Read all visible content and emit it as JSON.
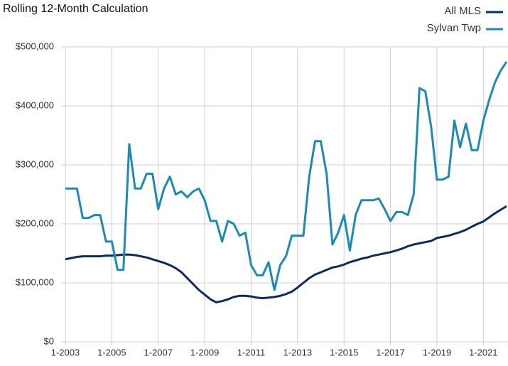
{
  "chart_data": {
    "type": "line",
    "title": "Rolling 12-Month Calculation",
    "x": [
      2003,
      2003.25,
      2003.5,
      2003.75,
      2004,
      2004.25,
      2004.5,
      2004.75,
      2005,
      2005.25,
      2005.5,
      2005.75,
      2006,
      2006.25,
      2006.5,
      2006.75,
      2007,
      2007.25,
      2007.5,
      2007.75,
      2008,
      2008.25,
      2008.5,
      2008.75,
      2009,
      2009.25,
      2009.5,
      2009.75,
      2010,
      2010.25,
      2010.5,
      2010.75,
      2011,
      2011.25,
      2011.5,
      2011.75,
      2012,
      2012.25,
      2012.5,
      2012.75,
      2013,
      2013.25,
      2013.5,
      2013.75,
      2014,
      2014.25,
      2014.5,
      2014.75,
      2015,
      2015.25,
      2015.5,
      2015.75,
      2016,
      2016.25,
      2016.5,
      2016.75,
      2017,
      2017.25,
      2017.5,
      2017.75,
      2018,
      2018.25,
      2018.5,
      2018.75,
      2019,
      2019.25,
      2019.5,
      2019.75,
      2020,
      2020.25,
      2020.5,
      2020.75,
      2021,
      2021.25,
      2021.5,
      2021.75,
      2022
    ],
    "series": [
      {
        "name": "All MLS",
        "color": "#0d2c5e",
        "values": [
          140000,
          142000,
          144000,
          145000,
          145000,
          145000,
          145000,
          146000,
          146000,
          147000,
          148000,
          148000,
          147000,
          145000,
          143000,
          140000,
          137000,
          134000,
          130000,
          125000,
          118000,
          108000,
          98000,
          88000,
          80000,
          72000,
          67000,
          69000,
          72000,
          76000,
          78000,
          78000,
          77000,
          75000,
          74000,
          75000,
          76000,
          78000,
          81000,
          85000,
          92000,
          100000,
          108000,
          114000,
          118000,
          122000,
          126000,
          128000,
          131000,
          135000,
          138000,
          141000,
          143000,
          146000,
          148000,
          150000,
          152000,
          155000,
          158000,
          162000,
          165000,
          167000,
          169000,
          171000,
          176000,
          178000,
          180000,
          183000,
          186000,
          190000,
          195000,
          200000,
          204000,
          211000,
          218000,
          224000,
          230000
        ]
      },
      {
        "name": "Sylvan Twp",
        "color": "#1b8ab8",
        "values": [
          260000,
          260000,
          260000,
          210000,
          210000,
          215000,
          215000,
          170000,
          170000,
          122000,
          122000,
          335000,
          260000,
          260000,
          285000,
          285000,
          225000,
          260000,
          280000,
          250000,
          255000,
          245000,
          255000,
          260000,
          240000,
          205000,
          205000,
          170000,
          205000,
          200000,
          180000,
          185000,
          130000,
          113000,
          113000,
          135000,
          88000,
          130000,
          145000,
          180000,
          180000,
          180000,
          280000,
          340000,
          340000,
          285000,
          165000,
          185000,
          215000,
          155000,
          215000,
          240000,
          240000,
          240000,
          243000,
          225000,
          205000,
          220000,
          220000,
          215000,
          250000,
          430000,
          425000,
          365000,
          275000,
          275000,
          280000,
          375000,
          330000,
          370000,
          325000,
          325000,
          375000,
          410000,
          440000,
          460000,
          475000
        ]
      }
    ],
    "xlim": [
      2003,
      2022
    ],
    "xticks": [
      {
        "value": 2003,
        "label": "1-2003"
      },
      {
        "value": 2005,
        "label": "1-2005"
      },
      {
        "value": 2007,
        "label": "1-2007"
      },
      {
        "value": 2009,
        "label": "1-2009"
      },
      {
        "value": 2011,
        "label": "1-2011"
      },
      {
        "value": 2013,
        "label": "1-2013"
      },
      {
        "value": 2015,
        "label": "1-2015"
      },
      {
        "value": 2017,
        "label": "1-2017"
      },
      {
        "value": 2019,
        "label": "1-2019"
      },
      {
        "value": 2021,
        "label": "1-2021"
      }
    ],
    "ylim": [
      0,
      500000
    ],
    "yticks": [
      {
        "value": 0,
        "label": "$0"
      },
      {
        "value": 100000,
        "label": "$100,000"
      },
      {
        "value": 200000,
        "label": "$200,000"
      },
      {
        "value": 300000,
        "label": "$300,000"
      },
      {
        "value": 400000,
        "label": "$400,000"
      },
      {
        "value": 500000,
        "label": "$500,000"
      }
    ],
    "grid": true,
    "legend": "top-right"
  }
}
